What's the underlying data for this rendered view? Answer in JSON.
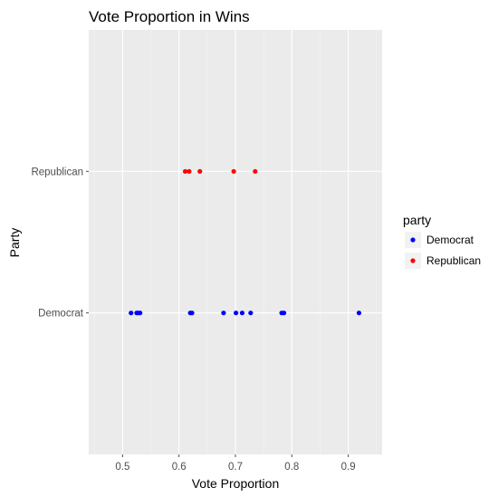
{
  "chart_data": {
    "type": "scatter",
    "title": "Vote Proportion in Wins",
    "xlabel": "Vote Proportion",
    "ylabel": "Party",
    "xlim": [
      0.44,
      0.96
    ],
    "x_ticks": [
      0.5,
      0.6,
      0.7,
      0.8,
      0.9
    ],
    "x_tick_labels": [
      "0.5",
      "0.6",
      "0.7",
      "0.8",
      "0.9"
    ],
    "categories": [
      "Democrat",
      "Republican"
    ],
    "grid": true,
    "legend": {
      "title": "party",
      "position": "right"
    },
    "series": [
      {
        "name": "Democrat",
        "color": "#0000ff",
        "category": "Democrat",
        "values": [
          0.515,
          0.525,
          0.528,
          0.531,
          0.62,
          0.623,
          0.679,
          0.701,
          0.712,
          0.727,
          0.782,
          0.786,
          0.919
        ]
      },
      {
        "name": "Republican",
        "color": "#ff0000",
        "category": "Republican",
        "values": [
          0.611,
          0.618,
          0.637,
          0.697,
          0.735
        ]
      }
    ],
    "colors": {
      "panel": "#ebebeb",
      "grid_major": "#ffffff",
      "grid_minor": "#f5f5f5",
      "tick": "#4d4d4d"
    }
  }
}
